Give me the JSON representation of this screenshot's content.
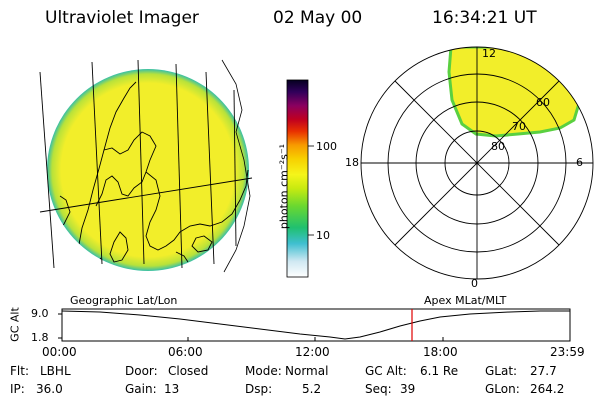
{
  "header": {
    "instrument": "Ultraviolet Imager",
    "date": "02 May 00",
    "time": "16:34:21 UT"
  },
  "colorbar": {
    "unit_label": "photon cm⁻²s⁻¹",
    "ticks": [
      "100",
      "10"
    ]
  },
  "polar_plot": {
    "mlt_labels": {
      "top": "12",
      "right": "6",
      "bottom": "0",
      "left": "18"
    },
    "lat_labels": [
      "60",
      "70",
      "80"
    ]
  },
  "timeline": {
    "left_caption": "Geographic Lat/Lon",
    "right_caption": "Apex MLat/MLT",
    "y_axis_label": "GC Alt",
    "y_ticks": [
      "9.0",
      "1.8"
    ],
    "x_ticks": [
      "00:00",
      "06:00",
      "12:00",
      "18:00",
      "23:59"
    ],
    "current_time_marker_color": "#e00000"
  },
  "info": {
    "row1": [
      {
        "label": "Flt:",
        "value": "LBHL"
      },
      {
        "label": "Door:",
        "value": "Closed"
      },
      {
        "label": "Mode:",
        "value": "Normal"
      },
      {
        "label": "GC Alt:",
        "value": "6.1 Re"
      },
      {
        "label": "GLat:",
        "value": "27.7"
      }
    ],
    "row2": [
      {
        "label": "IP:",
        "value": "36.0"
      },
      {
        "label": "Gain:",
        "value": "13"
      },
      {
        "label": "Dsp:",
        "value": "5.2"
      },
      {
        "label": "Seq:",
        "value": "39"
      },
      {
        "label": "GLon:",
        "value": "264.2"
      }
    ]
  }
}
